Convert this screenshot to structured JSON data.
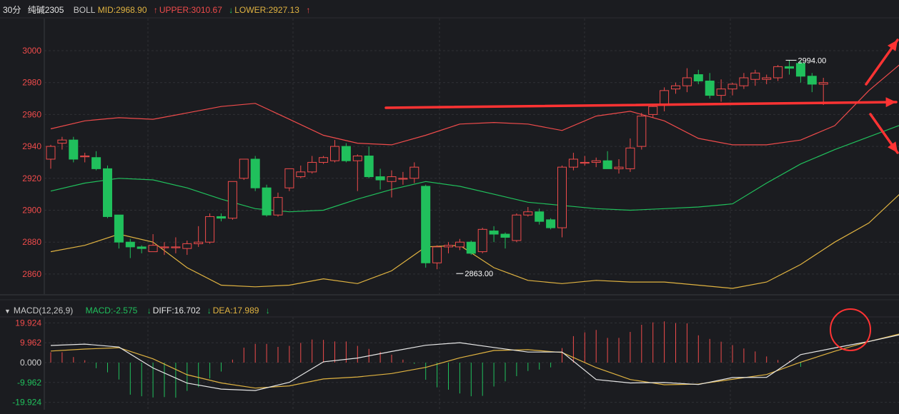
{
  "header": {
    "period": "30分",
    "symbol": "纯碱2305",
    "indicator": "BOLL",
    "mid": "MID:2968.90",
    "upper": "UPPER:3010.67",
    "lower": "LOWER:2927.13"
  },
  "macd_header": {
    "name": "MACD(12,26,9)",
    "macd": "MACD:-2.575",
    "diff": "DIFF:16.702",
    "dea": "DEA:17.989"
  },
  "colors": {
    "up": "#ef4b4b",
    "down": "#20c05c",
    "upper_band": "#ef4b4b",
    "mid_band": "#20c05c",
    "lower_band": "#e0b341",
    "diff_line": "#e6e6e6",
    "dea_line": "#e0b341",
    "annotation": "#ff3333"
  },
  "chart_data": [
    {
      "type": "candlestick",
      "title": "30分 纯碱2305 BOLL",
      "ylim": [
        2850,
        3015
      ],
      "y_ticks": [
        "3000",
        "2980",
        "2960",
        "2940",
        "2920",
        "2900",
        "2880",
        "2860"
      ],
      "grid": true,
      "ohlc": [
        [
          2932,
          2941,
          2926,
          2940
        ],
        [
          2942,
          2946,
          2938,
          2944
        ],
        [
          2944,
          2946,
          2930,
          2932
        ],
        [
          2934,
          2936,
          2930,
          2934
        ],
        [
          2933,
          2937,
          2925,
          2926
        ],
        [
          2926,
          2928,
          2895,
          2896
        ],
        [
          2897,
          2897,
          2876,
          2880
        ],
        [
          2880,
          2882,
          2870,
          2877
        ],
        [
          2877,
          2878,
          2873,
          2876
        ],
        [
          2874,
          2885,
          2874,
          2878
        ],
        [
          2877,
          2880,
          2872,
          2877
        ],
        [
          2877,
          2883,
          2873,
          2877
        ],
        [
          2876,
          2881,
          2872,
          2879
        ],
        [
          2879,
          2890,
          2877,
          2880
        ],
        [
          2880,
          2898,
          2879,
          2896
        ],
        [
          2896,
          2898,
          2893,
          2895
        ],
        [
          2895,
          2918,
          2894,
          2918
        ],
        [
          2920,
          2932,
          2919,
          2932
        ],
        [
          2932,
          2934,
          2912,
          2914
        ],
        [
          2914,
          2916,
          2896,
          2897
        ],
        [
          2897,
          2911,
          2896,
          2908
        ],
        [
          2914,
          2926,
          2912,
          2926
        ],
        [
          2921,
          2928,
          2920,
          2924
        ],
        [
          2924,
          2934,
          2923,
          2930
        ],
        [
          2930,
          2934,
          2929,
          2933
        ],
        [
          2931,
          2944,
          2930,
          2940
        ],
        [
          2940,
          2942,
          2930,
          2931
        ],
        [
          2931,
          2935,
          2912,
          2934
        ],
        [
          2934,
          2940,
          2920,
          2921
        ],
        [
          2921,
          2926,
          2913,
          2919
        ],
        [
          2918,
          2925,
          2908,
          2921
        ],
        [
          2920,
          2924,
          2916,
          2920
        ],
        [
          2920,
          2930,
          2917,
          2927
        ],
        [
          2915,
          2916,
          2864,
          2867
        ],
        [
          2867,
          2878,
          2863,
          2877
        ],
        [
          2877,
          2880,
          2873,
          2878
        ],
        [
          2877,
          2882,
          2875,
          2880
        ],
        [
          2880,
          2881,
          2872,
          2873
        ],
        [
          2874,
          2889,
          2873,
          2888
        ],
        [
          2887,
          2890,
          2880,
          2885
        ],
        [
          2885,
          2886,
          2876,
          2883
        ],
        [
          2881,
          2898,
          2880,
          2897
        ],
        [
          2897,
          2902,
          2896,
          2899
        ],
        [
          2899,
          2901,
          2891,
          2893
        ],
        [
          2894,
          2895,
          2888,
          2889
        ],
        [
          2889,
          2928,
          2883,
          2927
        ],
        [
          2927,
          2936,
          2925,
          2932
        ],
        [
          2930,
          2934,
          2928,
          2930
        ],
        [
          2930,
          2933,
          2927,
          2931
        ],
        [
          2931,
          2937,
          2926,
          2926
        ],
        [
          2926,
          2932,
          2923,
          2927
        ],
        [
          2926,
          2945,
          2924,
          2939
        ],
        [
          2940,
          2961,
          2938,
          2959
        ],
        [
          2960,
          2966,
          2958,
          2965
        ],
        [
          2966,
          2977,
          2962,
          2975
        ],
        [
          2976,
          2980,
          2973,
          2978
        ],
        [
          2978,
          2989,
          2974,
          2983
        ],
        [
          2985,
          2988,
          2979,
          2981
        ],
        [
          2981,
          2986,
          2970,
          2972
        ],
        [
          2972,
          2982,
          2968,
          2976
        ],
        [
          2976,
          2980,
          2972,
          2979
        ],
        [
          2978,
          2986,
          2976,
          2983
        ],
        [
          2982,
          2988,
          2978,
          2986
        ],
        [
          2982,
          2985,
          2979,
          2983
        ],
        [
          2983,
          2991,
          2981,
          2990
        ],
        [
          2990,
          2994,
          2985,
          2989
        ],
        [
          2992,
          2994,
          2980,
          2984
        ],
        [
          2984,
          2986,
          2974,
          2979
        ],
        [
          2979,
          2983,
          2966,
          2980
        ]
      ],
      "upper": [
        [
          0,
          2951
        ],
        [
          3,
          2956
        ],
        [
          6,
          2958
        ],
        [
          9,
          2957
        ],
        [
          12,
          2961
        ],
        [
          15,
          2965
        ],
        [
          18,
          2967
        ],
        [
          21,
          2957
        ],
        [
          24,
          2947
        ],
        [
          27,
          2942
        ],
        [
          30,
          2941
        ],
        [
          33,
          2947
        ],
        [
          36,
          2954
        ],
        [
          39,
          2955
        ],
        [
          42,
          2954
        ],
        [
          45,
          2950
        ],
        [
          48,
          2959
        ],
        [
          51,
          2962
        ],
        [
          54,
          2956
        ],
        [
          57,
          2945
        ],
        [
          60,
          2941
        ],
        [
          63,
          2941
        ],
        [
          66,
          2944
        ],
        [
          69,
          2953
        ],
        [
          72,
          2975
        ],
        [
          75,
          2993
        ],
        [
          78,
          3004
        ],
        [
          81,
          3010
        ],
        [
          84,
          3011
        ],
        [
          87,
          3011
        ],
        [
          90,
          3010
        ],
        [
          92,
          3010
        ]
      ],
      "mid": [
        [
          0,
          2912
        ],
        [
          3,
          2917
        ],
        [
          6,
          2920
        ],
        [
          9,
          2919
        ],
        [
          12,
          2914
        ],
        [
          15,
          2907
        ],
        [
          18,
          2901
        ],
        [
          21,
          2899
        ],
        [
          24,
          2900
        ],
        [
          27,
          2907
        ],
        [
          30,
          2913
        ],
        [
          33,
          2918
        ],
        [
          36,
          2915
        ],
        [
          39,
          2910
        ],
        [
          42,
          2905
        ],
        [
          45,
          2903
        ],
        [
          48,
          2901
        ],
        [
          51,
          2900
        ],
        [
          54,
          2901
        ],
        [
          57,
          2902
        ],
        [
          60,
          2904
        ],
        [
          63,
          2917
        ],
        [
          66,
          2929
        ],
        [
          69,
          2938
        ],
        [
          72,
          2946
        ],
        [
          75,
          2954
        ],
        [
          78,
          2961
        ],
        [
          81,
          2966
        ],
        [
          84,
          2969
        ]
      ],
      "lower": [
        [
          0,
          2874
        ],
        [
          3,
          2878
        ],
        [
          6,
          2885
        ],
        [
          9,
          2880
        ],
        [
          12,
          2864
        ],
        [
          15,
          2853
        ],
        [
          18,
          2852
        ],
        [
          21,
          2853
        ],
        [
          24,
          2857
        ],
        [
          27,
          2854
        ],
        [
          30,
          2862
        ],
        [
          33,
          2877
        ],
        [
          36,
          2878
        ],
        [
          39,
          2864
        ],
        [
          42,
          2856
        ],
        [
          45,
          2854
        ],
        [
          48,
          2856
        ],
        [
          51,
          2855
        ],
        [
          54,
          2855
        ],
        [
          57,
          2853
        ],
        [
          60,
          2851
        ],
        [
          63,
          2855
        ],
        [
          66,
          2866
        ],
        [
          69,
          2880
        ],
        [
          72,
          2892
        ],
        [
          75,
          2912
        ],
        [
          78,
          2927
        ]
      ],
      "annotations": [
        "2994.00",
        "2863.00"
      ]
    },
    {
      "type": "bar",
      "title": "MACD(12,26,9)",
      "ylim": [
        -19.924,
        19.924
      ],
      "y_ticks": [
        "19.924",
        "9.962",
        "0.000",
        "-9.962",
        "-19.924"
      ],
      "macd_hist": [
        5.2,
        5.2,
        2.8,
        1.2,
        -2.8,
        -4.9,
        -8.5,
        -16.1,
        -16.9,
        -17.5,
        -17.3,
        -17.6,
        -14.2,
        -12.3,
        -8.0,
        -4.5,
        1.5,
        7.5,
        9.4,
        9.4,
        7.9,
        8.4,
        9.9,
        11.6,
        11.4,
        10.6,
        10.6,
        8.4,
        6.9,
        5.4,
        4.0,
        1.5,
        -0.6,
        -8.6,
        -12.4,
        -13.6,
        -15.5,
        -16.9,
        -16.7,
        -12.0,
        -9.4,
        -6.8,
        -4.2,
        -3.5,
        -2.4,
        7.3,
        13.3,
        15.2,
        16.4,
        12.4,
        12.4,
        15.4,
        19.0,
        20.2,
        20.7,
        19.8,
        19.7,
        13.7,
        11.9,
        10.5,
        8.8,
        7.1,
        5.6,
        3.1,
        1.3,
        0.9,
        -2.1
      ],
      "diff": [
        [
          0,
          8.6
        ],
        [
          3,
          9.3
        ],
        [
          6,
          7.8
        ],
        [
          9,
          -2.7
        ],
        [
          12,
          -10.3
        ],
        [
          15,
          -13.3
        ],
        [
          18,
          -14.0
        ],
        [
          21,
          -9.9
        ],
        [
          24,
          0.4
        ],
        [
          27,
          2.3
        ],
        [
          30,
          5.6
        ],
        [
          33,
          8.7
        ],
        [
          36,
          10.0
        ],
        [
          39,
          7.6
        ],
        [
          42,
          5.3
        ],
        [
          45,
          5.3
        ],
        [
          48,
          -8.5
        ],
        [
          51,
          -10.2
        ],
        [
          54,
          -10.0
        ],
        [
          57,
          -11.0
        ],
        [
          60,
          -7.5
        ],
        [
          63,
          -7.4
        ],
        [
          66,
          4.0
        ],
        [
          69,
          7.4
        ],
        [
          72,
          10.6
        ],
        [
          75,
          14.3
        ],
        [
          78,
          19.2
        ],
        [
          81,
          23.4
        ],
        [
          84,
          23.4
        ],
        [
          87,
          23.0
        ],
        [
          90,
          23.1
        ],
        [
          92,
          18.5
        ]
      ],
      "dea": [
        [
          0,
          5.8
        ],
        [
          3,
          6.8
        ],
        [
          6,
          7.5
        ],
        [
          9,
          1.9
        ],
        [
          12,
          -6.1
        ],
        [
          15,
          -10.2
        ],
        [
          18,
          -12.8
        ],
        [
          21,
          -11.7
        ],
        [
          24,
          -8.2
        ],
        [
          27,
          -7.2
        ],
        [
          30,
          -5.5
        ],
        [
          33,
          -2.4
        ],
        [
          36,
          2.4
        ],
        [
          39,
          6.1
        ],
        [
          42,
          6.5
        ],
        [
          45,
          5.1
        ],
        [
          48,
          -2.5
        ],
        [
          51,
          -8.5
        ],
        [
          54,
          -11.1
        ],
        [
          57,
          -10.8
        ],
        [
          60,
          -8.4
        ],
        [
          63,
          -6.0
        ],
        [
          66,
          0.2
        ],
        [
          69,
          5.7
        ],
        [
          72,
          10.6
        ],
        [
          75,
          14.8
        ],
        [
          78,
          19.2
        ],
        [
          81,
          22.0
        ],
        [
          84,
          23.0
        ],
        [
          87,
          22.5
        ],
        [
          90,
          21.7
        ],
        [
          92,
          19.3
        ]
      ]
    }
  ]
}
